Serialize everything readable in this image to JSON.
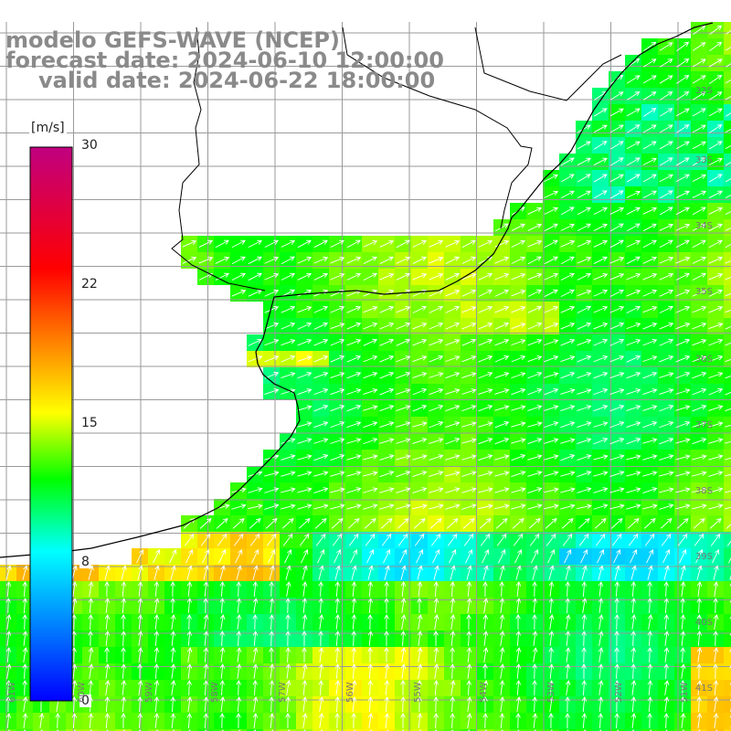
{
  "title": {
    "line1": "modelo GEFS-WAVE (NCEP)",
    "line2": "forecast date: 2024-06-10 12:00:00",
    "line3": "valid date: 2024-06-22 18:00:00"
  },
  "colorbar": {
    "unit": "[m/s]",
    "ticks": [
      "30",
      "22",
      "15",
      "8",
      "0"
    ],
    "tick_values": [
      30,
      22,
      15,
      8,
      0
    ],
    "range": [
      0,
      30
    ],
    "gradient_colors": [
      "#0000ff",
      "#00ffff",
      "#00ff00",
      "#ffff00",
      "#ff8000",
      "#ff0000",
      "#c00080"
    ]
  },
  "lat_labels": [
    "32S",
    "33S",
    "34S",
    "35S",
    "36S",
    "37S",
    "38S",
    "39S",
    "40S",
    "41S"
  ],
  "lon_labels": [
    "61W",
    "60W",
    "59W",
    "58W",
    "57W",
    "56W",
    "55W",
    "54W",
    "53W",
    "52W",
    "51W"
  ],
  "colors": {
    "land": "#ffffff",
    "grid": "#9a9a9a",
    "coast": "#000000",
    "arrow": "#ffffff",
    "title": "#8a8a8a"
  }
}
